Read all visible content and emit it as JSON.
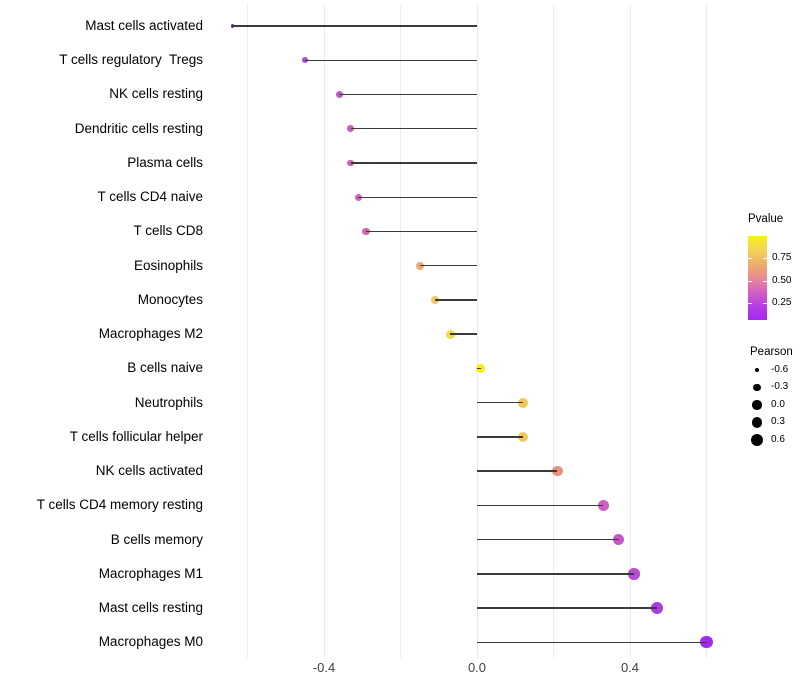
{
  "chart_data": {
    "type": "scatter",
    "variant": "lollipop",
    "title": "",
    "xlabel": "",
    "ylabel": "",
    "xlim": [
      -0.71,
      0.665
    ],
    "grid_values": [
      -0.6,
      -0.4,
      -0.2,
      0.0,
      0.2,
      0.4,
      0.6
    ],
    "x_ticks": [
      {
        "value": -0.4,
        "label": "-0.4"
      },
      {
        "value": 0.0,
        "label": "0.0"
      },
      {
        "value": 0.4,
        "label": "0.4"
      }
    ],
    "rows": [
      {
        "label": "Mast cells activated",
        "pearson": -0.64,
        "color": "#7b2ccc"
      },
      {
        "label": "T cells regulatory  Tregs",
        "pearson": -0.45,
        "color": "#a94fd1"
      },
      {
        "label": "NK cells resting",
        "pearson": -0.36,
        "color": "#c15cc5"
      },
      {
        "label": "Dendritic cells resting",
        "pearson": -0.33,
        "color": "#c760bf"
      },
      {
        "label": "Plasma cells",
        "pearson": -0.33,
        "color": "#c961bd"
      },
      {
        "label": "T cells CD4 naive",
        "pearson": -0.31,
        "color": "#cc64ba"
      },
      {
        "label": "T cells CD8",
        "pearson": -0.29,
        "color": "#d069b4"
      },
      {
        "label": "Eosinophils",
        "pearson": -0.15,
        "color": "#ecab70"
      },
      {
        "label": "Monocytes",
        "pearson": -0.11,
        "color": "#efcb60"
      },
      {
        "label": "Macrophages M2",
        "pearson": -0.07,
        "color": "#f2dd50"
      },
      {
        "label": "B cells naive",
        "pearson": 0.01,
        "color": "#f5f014"
      },
      {
        "label": "Neutrophils",
        "pearson": 0.12,
        "color": "#eec95e"
      },
      {
        "label": "T cells follicular helper",
        "pearson": 0.12,
        "color": "#eec95e"
      },
      {
        "label": "NK cells activated",
        "pearson": 0.21,
        "color": "#e8907f"
      },
      {
        "label": "T cells CD4 memory resting",
        "pearson": 0.33,
        "color": "#cb5fc6"
      },
      {
        "label": "B cells memory",
        "pearson": 0.37,
        "color": "#c556ca"
      },
      {
        "label": "Macrophages M1",
        "pearson": 0.41,
        "color": "#ba4bd4"
      },
      {
        "label": "Mast cells resting",
        "pearson": 0.47,
        "color": "#ab3ce0"
      },
      {
        "label": "Macrophages M0",
        "pearson": 0.6,
        "color": "#a02ae9"
      }
    ],
    "legend_pvalue": {
      "title": "Pvalue",
      "tick_labels": [
        "0.75",
        "0.50",
        "0.25"
      ],
      "gradient_top_to_bottom": [
        "#f5f118",
        "#f3d952",
        "#f0b866",
        "#eb9a80",
        "#e078ab",
        "#cc56cd",
        "#b33ae6",
        "#a52af0"
      ]
    },
    "legend_pearson": {
      "title": "Pearson",
      "dot_color": "#000000",
      "items": [
        {
          "value": -0.6,
          "label": "-0.6"
        },
        {
          "value": -0.3,
          "label": "-0.3"
        },
        {
          "value": 0.0,
          "label": "0.0"
        },
        {
          "value": 0.3,
          "label": "0.3"
        },
        {
          "value": 0.6,
          "label": "0.6"
        }
      ]
    },
    "stem_color": "#3a3a3a",
    "gridline_color": "#ececec",
    "background": "#ffffff"
  }
}
